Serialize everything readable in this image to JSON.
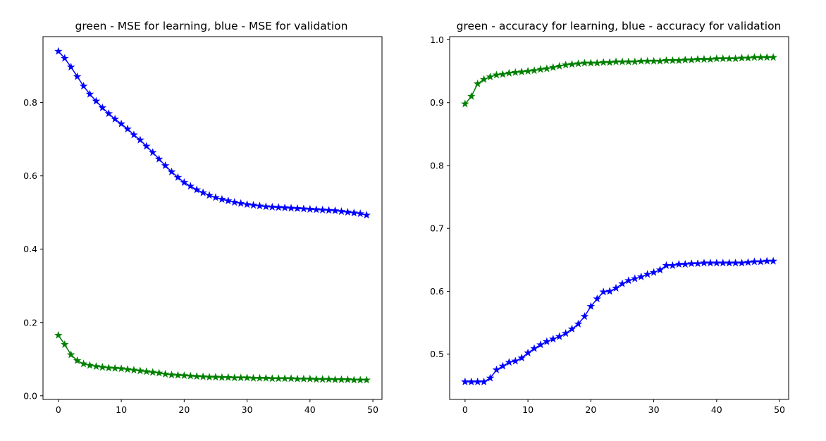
{
  "chart_data": [
    {
      "type": "line",
      "title": "green - MSE for learning, blue - MSE for validation",
      "xlabel": "",
      "ylabel": "",
      "xlim": [
        -2.45,
        51.45
      ],
      "ylim": [
        -0.01,
        0.98
      ],
      "xticks": [
        0,
        10,
        20,
        30,
        40,
        50
      ],
      "yticks": [
        0.0,
        0.2,
        0.4,
        0.6,
        0.8
      ],
      "ytick_labels": [
        "0.0",
        "0.2",
        "0.4",
        "0.6",
        "0.8"
      ],
      "grid": false,
      "legend": "none",
      "x": [
        0,
        1,
        2,
        3,
        4,
        5,
        6,
        7,
        8,
        9,
        10,
        11,
        12,
        13,
        14,
        15,
        16,
        17,
        18,
        19,
        20,
        21,
        22,
        23,
        24,
        25,
        26,
        27,
        28,
        29,
        30,
        31,
        32,
        33,
        34,
        35,
        36,
        37,
        38,
        39,
        40,
        41,
        42,
        43,
        44,
        45,
        46,
        47,
        48,
        49
      ],
      "series": [
        {
          "color": "#0000ff",
          "marker": "star",
          "values": [
            0.94,
            0.921,
            0.897,
            0.871,
            0.845,
            0.823,
            0.804,
            0.786,
            0.77,
            0.755,
            0.742,
            0.728,
            0.712,
            0.698,
            0.681,
            0.664,
            0.646,
            0.628,
            0.611,
            0.596,
            0.582,
            0.572,
            0.562,
            0.554,
            0.547,
            0.541,
            0.536,
            0.532,
            0.528,
            0.525,
            0.522,
            0.52,
            0.518,
            0.516,
            0.515,
            0.514,
            0.513,
            0.512,
            0.511,
            0.51,
            0.509,
            0.508,
            0.507,
            0.506,
            0.505,
            0.503,
            0.501,
            0.499,
            0.497,
            0.493
          ]
        },
        {
          "color": "#008000",
          "marker": "star",
          "values": [
            0.165,
            0.14,
            0.112,
            0.096,
            0.087,
            0.083,
            0.08,
            0.078,
            0.076,
            0.075,
            0.074,
            0.072,
            0.07,
            0.068,
            0.066,
            0.064,
            0.062,
            0.059,
            0.057,
            0.056,
            0.055,
            0.054,
            0.053,
            0.052,
            0.051,
            0.051,
            0.05,
            0.05,
            0.049,
            0.049,
            0.049,
            0.048,
            0.048,
            0.048,
            0.047,
            0.047,
            0.047,
            0.047,
            0.046,
            0.046,
            0.046,
            0.045,
            0.045,
            0.045,
            0.044,
            0.044,
            0.044,
            0.043,
            0.043,
            0.043
          ]
        }
      ]
    },
    {
      "type": "line",
      "title": "green - accuracy for learning, blue - accuracy for validation",
      "xlabel": "",
      "ylabel": "",
      "xlim": [
        -2.45,
        51.45
      ],
      "ylim": [
        0.428,
        1.005
      ],
      "xticks": [
        0,
        10,
        20,
        30,
        40,
        50
      ],
      "yticks": [
        0.5,
        0.6,
        0.7,
        0.8,
        0.9,
        1.0
      ],
      "ytick_labels": [
        "0.5",
        "0.6",
        "0.7",
        "0.8",
        "0.9",
        "1.0"
      ],
      "grid": false,
      "legend": "none",
      "x": [
        0,
        1,
        2,
        3,
        4,
        5,
        6,
        7,
        8,
        9,
        10,
        11,
        12,
        13,
        14,
        15,
        16,
        17,
        18,
        19,
        20,
        21,
        22,
        23,
        24,
        25,
        26,
        27,
        28,
        29,
        30,
        31,
        32,
        33,
        34,
        35,
        36,
        37,
        38,
        39,
        40,
        41,
        42,
        43,
        44,
        45,
        46,
        47,
        48,
        49
      ],
      "series": [
        {
          "color": "#008000",
          "marker": "star",
          "values": [
            0.898,
            0.91,
            0.93,
            0.937,
            0.941,
            0.944,
            0.945,
            0.947,
            0.948,
            0.949,
            0.95,
            0.951,
            0.953,
            0.954,
            0.956,
            0.958,
            0.96,
            0.961,
            0.962,
            0.963,
            0.963,
            0.963,
            0.964,
            0.964,
            0.965,
            0.965,
            0.965,
            0.965,
            0.966,
            0.966,
            0.966,
            0.966,
            0.967,
            0.967,
            0.967,
            0.968,
            0.968,
            0.969,
            0.969,
            0.969,
            0.97,
            0.97,
            0.97,
            0.97,
            0.971,
            0.971,
            0.972,
            0.972,
            0.972,
            0.972
          ]
        },
        {
          "color": "#0000ff",
          "marker": "star",
          "values": [
            0.456,
            0.456,
            0.456,
            0.456,
            0.462,
            0.475,
            0.481,
            0.487,
            0.489,
            0.494,
            0.502,
            0.509,
            0.515,
            0.52,
            0.524,
            0.528,
            0.533,
            0.54,
            0.548,
            0.56,
            0.576,
            0.588,
            0.599,
            0.6,
            0.605,
            0.612,
            0.617,
            0.62,
            0.623,
            0.627,
            0.63,
            0.634,
            0.641,
            0.641,
            0.643,
            0.643,
            0.644,
            0.644,
            0.645,
            0.645,
            0.645,
            0.645,
            0.645,
            0.645,
            0.645,
            0.646,
            0.647,
            0.647,
            0.648,
            0.648
          ]
        }
      ]
    }
  ]
}
